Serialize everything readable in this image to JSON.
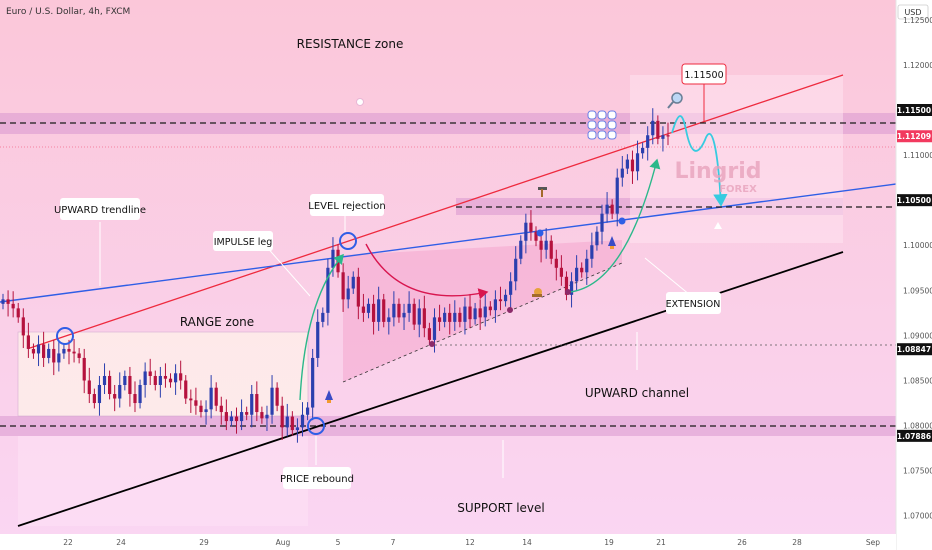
{
  "chart_data": {
    "type": "candlestick",
    "header": "Euro / U.S. Dollar, 4h, FXCM",
    "currency": "USD",
    "x_ticks": [
      "22",
      "24",
      "29",
      "Aug",
      "5",
      "7",
      "12",
      "14",
      "19",
      "21",
      "26",
      "28",
      "Sep"
    ],
    "y_ticks": [
      "1.12500",
      "1.12000",
      "1.11500",
      "1.11000",
      "1.10500",
      "1.10000",
      "1.09500",
      "1.09000",
      "1.08500",
      "1.08000",
      "1.07500",
      "1.07000"
    ],
    "y_tick_values": [
      1.125,
      1.12,
      1.115,
      1.11,
      1.105,
      1.1,
      1.095,
      1.09,
      1.085,
      1.08,
      1.075,
      1.07
    ],
    "ylim": [
      1.0662,
      1.1272
    ],
    "price_tags": [
      {
        "label": "1.11500",
        "value": 1.115,
        "color": "#111111"
      },
      {
        "label": "1.11209",
        "value": 1.11209,
        "color": "#f23a5f"
      },
      {
        "label": "1.10500",
        "value": 1.105,
        "color": "#111111"
      },
      {
        "label": "1.08847",
        "value": 1.08847,
        "color": "#111111"
      },
      {
        "label": "1.07886",
        "value": 1.07886,
        "color": "#111111"
      }
    ],
    "price_path": [
      1.094,
      1.0935,
      1.093,
      1.092,
      1.09,
      1.0885,
      1.088,
      1.089,
      1.0875,
      1.0885,
      1.087,
      1.088,
      1.0885,
      1.0882,
      1.088,
      1.0875,
      1.085,
      1.0835,
      1.0825,
      1.0845,
      1.0855,
      1.0835,
      1.083,
      1.0845,
      1.0855,
      1.0835,
      1.0825,
      1.0845,
      1.086,
      1.0855,
      1.0845,
      1.0855,
      1.0852,
      1.0848,
      1.0858,
      1.085,
      1.083,
      1.0828,
      1.0822,
      1.0815,
      1.0818,
      1.0842,
      1.0822,
      1.0815,
      1.0805,
      1.081,
      1.0805,
      1.0815,
      1.0812,
      1.0835,
      1.0815,
      1.0808,
      1.0812,
      1.0842,
      1.0822,
      1.0798,
      1.081,
      1.0795,
      1.0798,
      1.0812,
      1.082,
      1.0875,
      1.0915,
      1.0925,
      1.0975,
      1.0995,
      1.097,
      1.094,
      1.0952,
      1.0965,
      1.0932,
      1.0925,
      1.0935,
      1.0915,
      1.094,
      1.0915,
      1.092,
      1.0935,
      1.092,
      1.0925,
      1.0935,
      1.0912,
      1.093,
      1.0908,
      1.0895,
      1.092,
      1.0915,
      1.0925,
      1.0915,
      1.0925,
      1.0915,
      1.0932,
      1.0918,
      1.093,
      1.092,
      1.0932,
      1.0928,
      1.094,
      1.0938,
      1.0945,
      1.096,
      1.0985,
      1.1005,
      1.1025,
      1.1015,
      1.1005,
      1.0995,
      1.1005,
      1.0985,
      1.0975,
      1.0965,
      1.0945,
      1.096,
      1.0975,
      1.097,
      1.0985,
      1.1,
      1.1015,
      1.1035,
      1.1045,
      1.1035,
      1.1075,
      1.1085,
      1.1095,
      1.1082,
      1.1102,
      1.1108,
      1.1122,
      1.1138,
      1.1118,
      1.1122,
      1.1121
    ],
    "annotations": [
      "RESISTANCE zone",
      "RANGE zone",
      "UPWARD trendline",
      "LEVEL rejection",
      "IMPULSE leg",
      "EXTENSION",
      "UPWARD channel",
      "PRICE rebound",
      "SUPPORT level",
      "1.11500"
    ],
    "watermark": {
      "name": "Lingrid",
      "sub": "FOREX"
    }
  },
  "colors": {
    "up": "#2b3fae",
    "down": "#b5123e",
    "background_top": "#fbc7d9",
    "background_bottom": "#fad6f3",
    "zone": "#d997cf",
    "trend_red": "#ee2a3e",
    "trend_blue": "#2f5ee6",
    "projection": "#37cbe0",
    "arc_green": "#2bb88a",
    "arc_red": "#d8164f"
  }
}
